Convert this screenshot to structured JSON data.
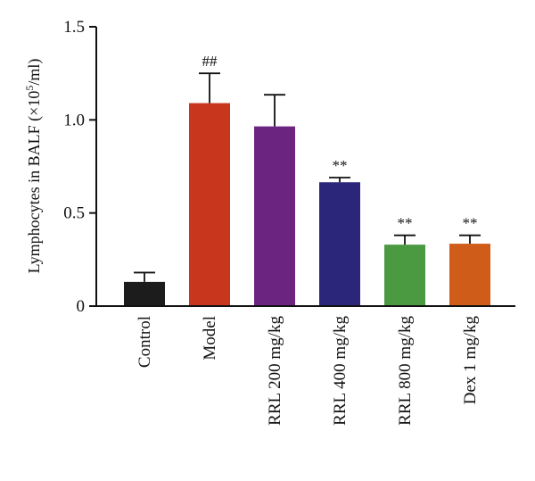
{
  "chart_data": {
    "type": "bar",
    "categories": [
      "Control",
      "Model",
      "RRL 200 mg/kg",
      "RRL 400 mg/kg",
      "RRL 800 mg/kg",
      "Dex 1 mg/kg"
    ],
    "values": [
      0.13,
      1.09,
      0.965,
      0.665,
      0.33,
      0.335
    ],
    "error_upper": [
      0.05,
      0.16,
      0.17,
      0.025,
      0.05,
      0.045
    ],
    "significance": [
      "",
      "##",
      "",
      "**",
      "**",
      "**"
    ],
    "colors": [
      "#1c1c1c",
      "#c8361e",
      "#6b2580",
      "#2c267a",
      "#4b9a42",
      "#d05c1a"
    ],
    "ylim": [
      0,
      1.5
    ],
    "yticks": [
      "0",
      "0.5",
      "1.0",
      "1.5"
    ],
    "ylabel_text": "Lymphocytes in BALF (×10",
    "ylabel_sup": "5",
    "ylabel_unit": "/ml)",
    "xlabel": ""
  }
}
